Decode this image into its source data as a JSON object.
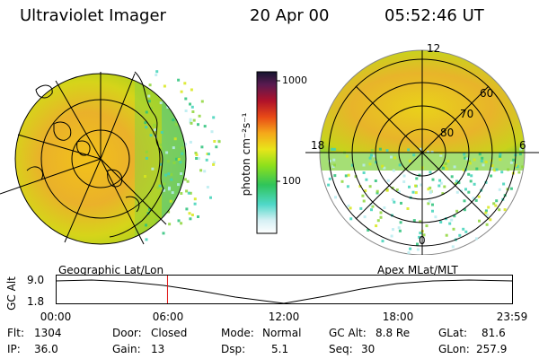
{
  "header": {
    "title": "Ultraviolet Imager",
    "date": "20 Apr 00",
    "time": "05:52:46 UT"
  },
  "colorbar": {
    "unit_label": "photon cm⁻²s⁻¹",
    "tick_1000": "1000",
    "tick_100": "100"
  },
  "polar_plot": {
    "mlt_12": "12",
    "mlt_18": "18",
    "mlt_6": "6",
    "mlt_0": "0",
    "lat_60": "60",
    "lat_70": "70",
    "lat_80": "80"
  },
  "timeline": {
    "left_caption": "Geographic Lat/Lon",
    "right_caption": "Apex MLat/MLT",
    "axis_label": "GC Alt",
    "y_max": "9.0",
    "y_min": "1.8",
    "ticks": [
      "00:00",
      "06:00",
      "12:00",
      "18:00",
      "23:59"
    ],
    "current_time_marker": 5.88,
    "marker_color": "#e01010"
  },
  "status": {
    "flt_label": "Flt:",
    "flt_value": "1304",
    "ip_label": "IP:",
    "ip_value": "36.0",
    "door_label": "Door:",
    "door_value": "Closed",
    "gain_label": "Gain:",
    "gain_value": "13",
    "mode_label": "Mode:",
    "mode_value": "Normal",
    "dsp_label": "Dsp:",
    "dsp_value": "5.1",
    "gcalt_label": "GC Alt:",
    "gcalt_value": "8.8 Re",
    "seq_label": "Seq:",
    "seq_value": "30",
    "glat_label": "GLat:",
    "glat_value": "81.6",
    "glon_label": "GLon:",
    "glon_value": "257.9"
  }
}
